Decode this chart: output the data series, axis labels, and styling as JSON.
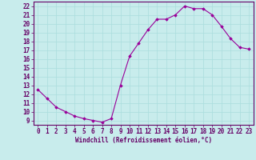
{
  "x": [
    0,
    1,
    2,
    3,
    4,
    5,
    6,
    7,
    8,
    9,
    10,
    11,
    12,
    13,
    14,
    15,
    16,
    17,
    18,
    19,
    20,
    21,
    22,
    23
  ],
  "y": [
    12.5,
    11.5,
    10.5,
    10.0,
    9.5,
    9.2,
    9.0,
    8.8,
    9.2,
    13.0,
    16.3,
    17.8,
    19.3,
    20.5,
    20.5,
    21.0,
    22.0,
    21.7,
    21.7,
    21.0,
    19.7,
    18.3,
    17.3,
    17.1
  ],
  "line_color": "#990099",
  "marker": "D",
  "marker_size": 1.8,
  "background_color": "#c8ecec",
  "grid_color": "#aadddd",
  "xlabel": "Windchill (Refroidissement éolien,°C)",
  "xlabel_fontsize": 5.5,
  "ylabel_ticks": [
    9,
    10,
    11,
    12,
    13,
    14,
    15,
    16,
    17,
    18,
    19,
    20,
    21,
    22
  ],
  "xlim": [
    -0.5,
    23.5
  ],
  "ylim": [
    8.5,
    22.5
  ],
  "tick_fontsize": 5.5,
  "spine_color": "#660066",
  "label_color": "#660066"
}
